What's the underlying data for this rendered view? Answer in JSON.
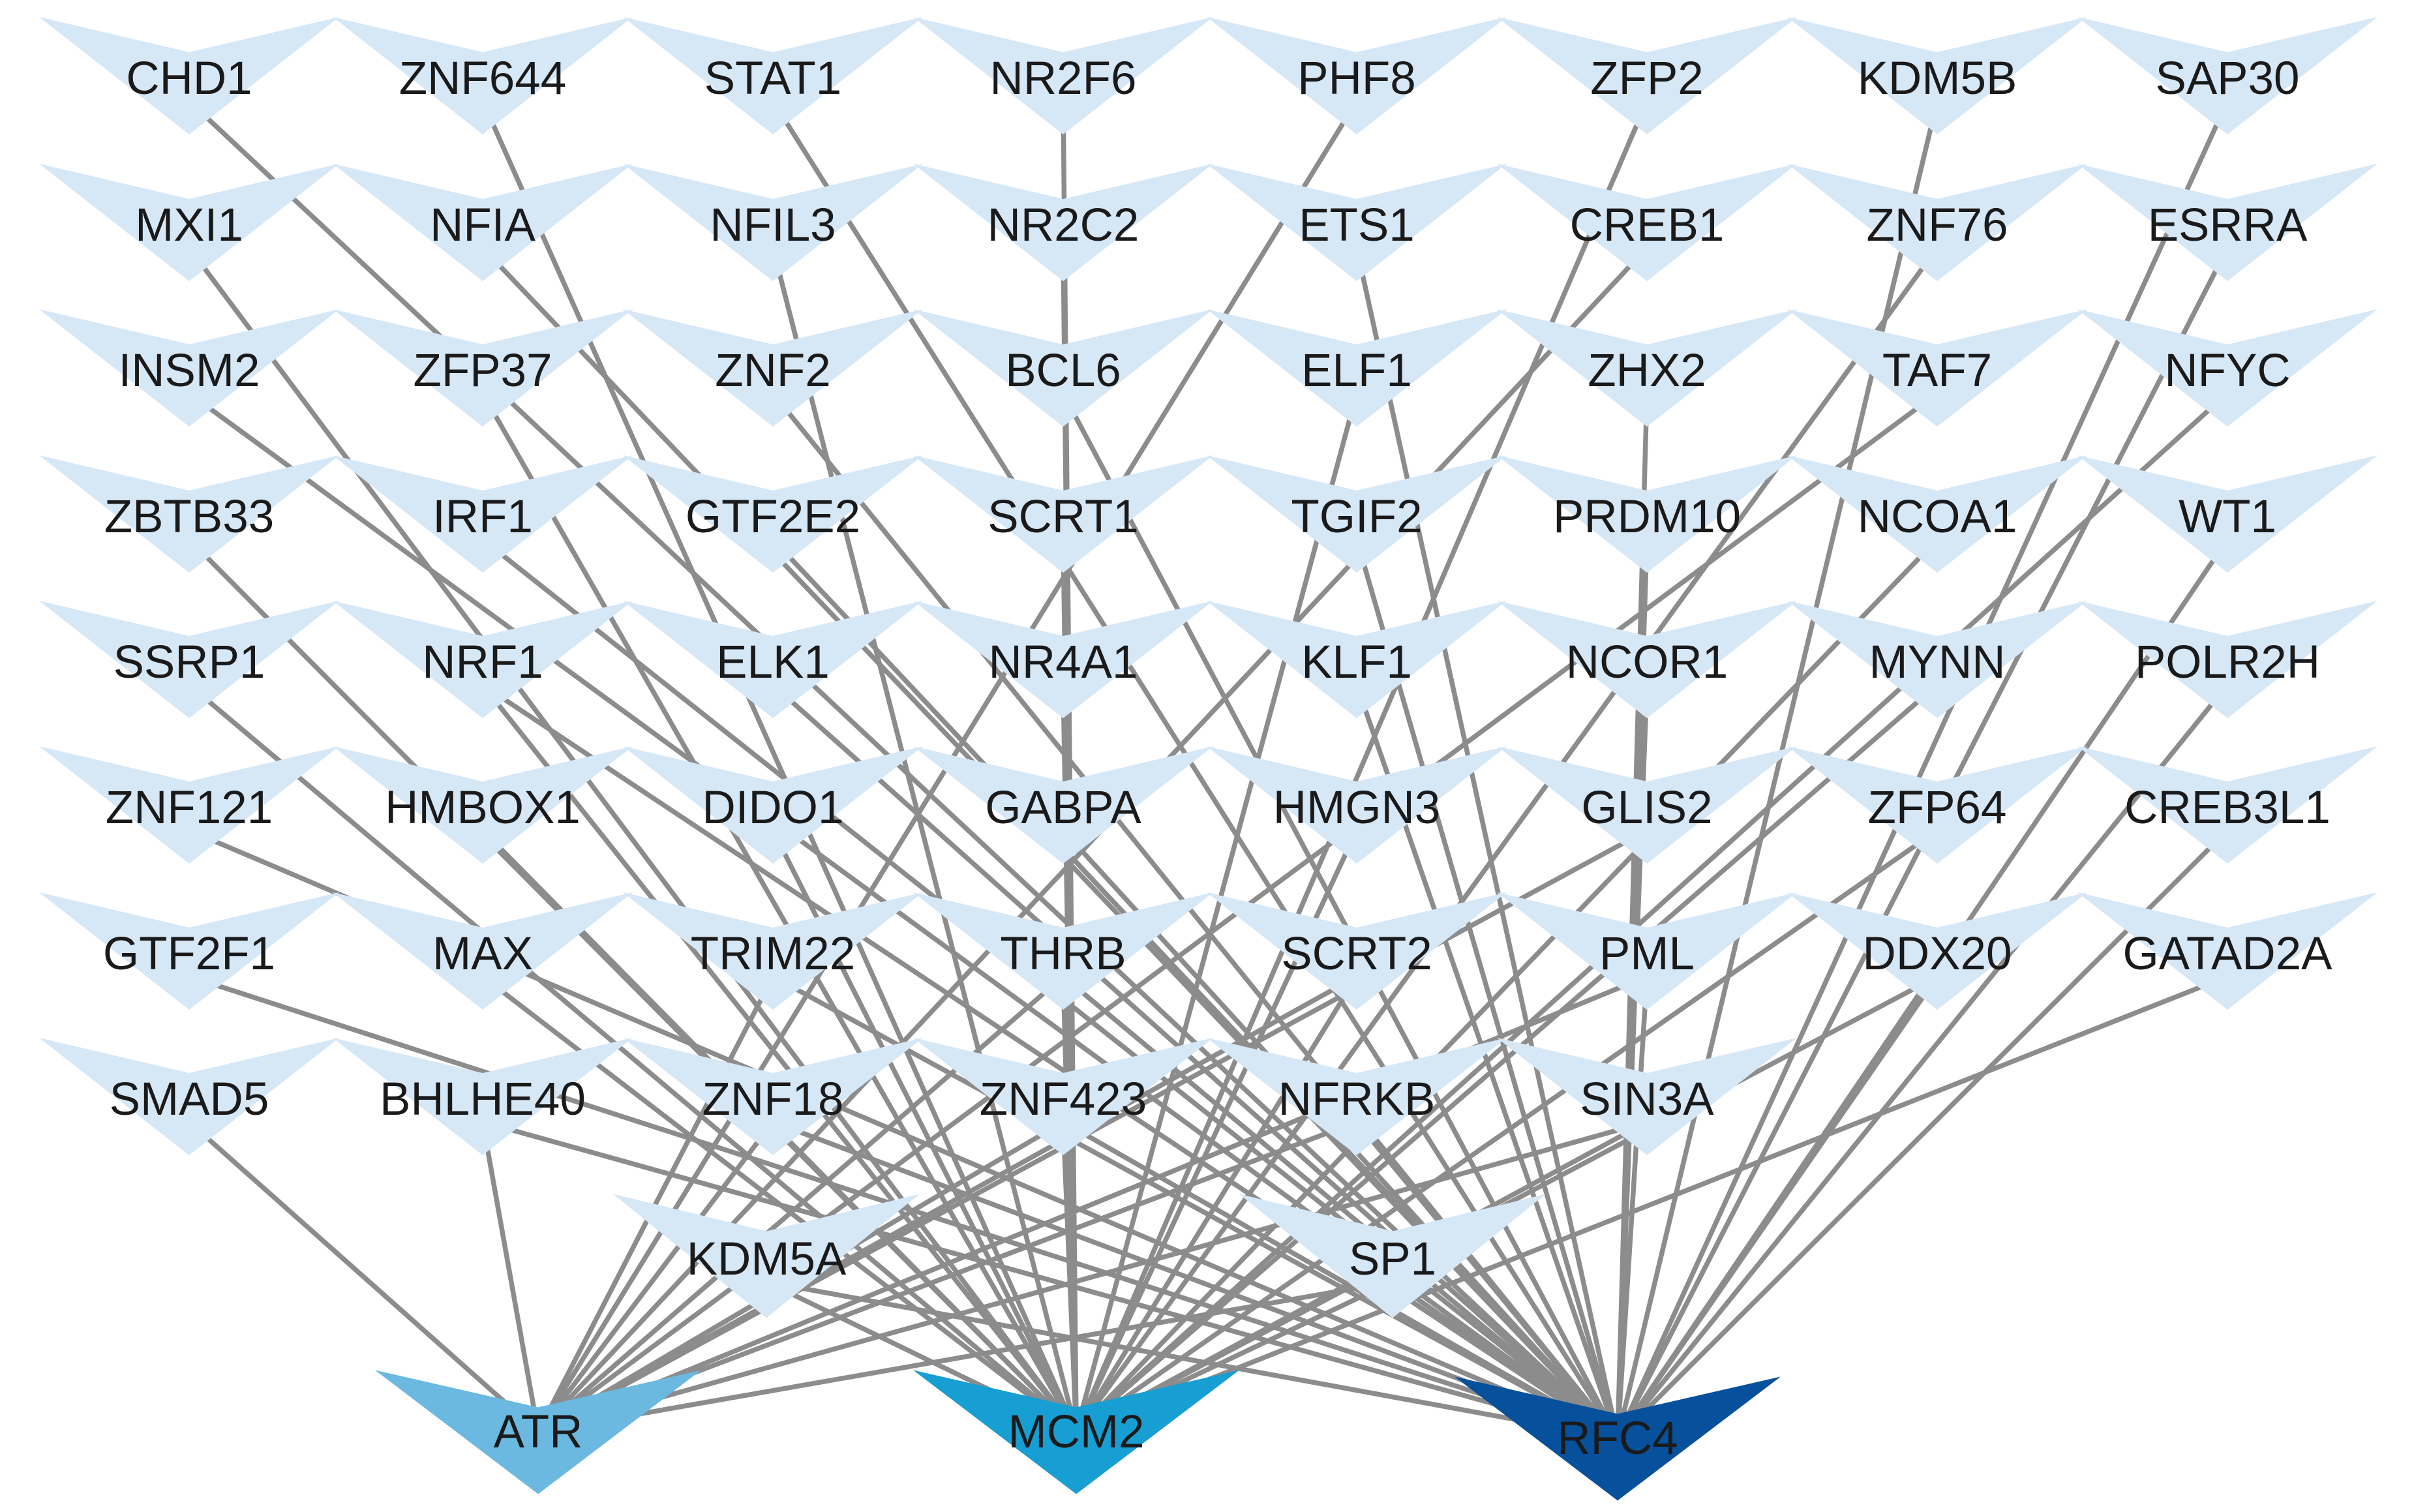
{
  "colors": {
    "edge": "#8c8c8c",
    "tf": "#d6e7f6",
    "ATR": "#6bb9e1",
    "MCM2": "#179ed2",
    "RFC4": "#06509c"
  },
  "tf_rows": [
    [
      "CHD1",
      "ZNF644",
      "STAT1",
      "NR2F6",
      "PHF8",
      "ZFP2",
      "KDM5B",
      "SAP30"
    ],
    [
      "MXI1",
      "NFIA",
      "NFIL3",
      "NR2C2",
      "ETS1",
      "CREB1",
      "ZNF76",
      "ESRRA"
    ],
    [
      "INSM2",
      "ZFP37",
      "ZNF2",
      "BCL6",
      "ELF1",
      "ZHX2",
      "TAF7",
      "NFYC"
    ],
    [
      "ZBTB33",
      "IRF1",
      "GTF2E2",
      "SCRT1",
      "TGIF2",
      "PRDM10",
      "NCOA1",
      "WT1"
    ],
    [
      "SSRP1",
      "NRF1",
      "ELK1",
      "NR4A1",
      "KLF1",
      "NCOR1",
      "MYNN",
      "POLR2H"
    ],
    [
      "ZNF121",
      "HMBOX1",
      "DIDO1",
      "GABPA",
      "HMGN3",
      "GLIS2",
      "ZFP64",
      "CREB3L1"
    ],
    [
      "GTF2F1",
      "MAX",
      "TRIM22",
      "THRB",
      "SCRT2",
      "PML",
      "DDX20",
      "GATAD2A"
    ],
    [
      "SMAD5",
      "BHLHE40",
      "ZNF18",
      "ZNF423",
      "NFRKB",
      "SIN3A"
    ],
    [
      "KDM5A",
      "SP1"
    ]
  ],
  "targets": [
    "ATR",
    "MCM2",
    "RFC4"
  ],
  "edges": [
    [
      "CHD1",
      "RFC4"
    ],
    [
      "ZNF644",
      "MCM2"
    ],
    [
      "STAT1",
      "RFC4"
    ],
    [
      "NR2F6",
      "MCM2"
    ],
    [
      "PHF8",
      "ATR"
    ],
    [
      "ZFP2",
      "MCM2"
    ],
    [
      "KDM5B",
      "RFC4"
    ],
    [
      "SAP30",
      "RFC4"
    ],
    [
      "MXI1",
      "MCM2"
    ],
    [
      "NFIA",
      "RFC4"
    ],
    [
      "NFIL3",
      "MCM2"
    ],
    [
      "NR2C2",
      "MCM2"
    ],
    [
      "ETS1",
      "RFC4"
    ],
    [
      "CREB1",
      "ATR"
    ],
    [
      "ZNF76",
      "MCM2"
    ],
    [
      "ESRRA",
      "RFC4"
    ],
    [
      "INSM2",
      "RFC4"
    ],
    [
      "ZFP37",
      "MCM2"
    ],
    [
      "ZNF2",
      "RFC4"
    ],
    [
      "BCL6",
      "RFC4"
    ],
    [
      "ELF1",
      "MCM2"
    ],
    [
      "ZHX2",
      "RFC4"
    ],
    [
      "TAF7",
      "ATR"
    ],
    [
      "NFYC",
      "MCM2"
    ],
    [
      "ZBTB33",
      "MCM2"
    ],
    [
      "IRF1",
      "RFC4"
    ],
    [
      "GTF2E2",
      "RFC4"
    ],
    [
      "SCRT1",
      "MCM2"
    ],
    [
      "TGIF2",
      "RFC4"
    ],
    [
      "PRDM10",
      "RFC4"
    ],
    [
      "NCOA1",
      "MCM2"
    ],
    [
      "WT1",
      "RFC4"
    ],
    [
      "SSRP1",
      "MCM2"
    ],
    [
      "NRF1",
      "MCM2"
    ],
    [
      "NRF1",
      "RFC4"
    ],
    [
      "ELK1",
      "RFC4"
    ],
    [
      "NR4A1",
      "MCM2"
    ],
    [
      "KLF1",
      "RFC4"
    ],
    [
      "NCOR1",
      "RFC4"
    ],
    [
      "MYNN",
      "MCM2"
    ],
    [
      "POLR2H",
      "RFC4"
    ],
    [
      "ZNF121",
      "RFC4"
    ],
    [
      "HMBOX1",
      "MCM2"
    ],
    [
      "DIDO1",
      "MCM2"
    ],
    [
      "GABPA",
      "RFC4"
    ],
    [
      "HMGN3",
      "MCM2"
    ],
    [
      "GLIS2",
      "ATR"
    ],
    [
      "ZFP64",
      "MCM2"
    ],
    [
      "CREB3L1",
      "RFC4"
    ],
    [
      "GTF2F1",
      "RFC4"
    ],
    [
      "MAX",
      "MCM2"
    ],
    [
      "TRIM22",
      "ATR"
    ],
    [
      "TRIM22",
      "RFC4"
    ],
    [
      "THRB",
      "ATR"
    ],
    [
      "THRB",
      "MCM2"
    ],
    [
      "THRB",
      "RFC4"
    ],
    [
      "SCRT2",
      "ATR"
    ],
    [
      "SCRT2",
      "MCM2"
    ],
    [
      "PML",
      "ATR"
    ],
    [
      "PML",
      "RFC4"
    ],
    [
      "DDX20",
      "MCM2"
    ],
    [
      "DDX20",
      "RFC4"
    ],
    [
      "GATAD2A",
      "MCM2"
    ],
    [
      "SMAD5",
      "ATR"
    ],
    [
      "BHLHE40",
      "ATR"
    ],
    [
      "BHLHE40",
      "RFC4"
    ],
    [
      "ZNF18",
      "ATR"
    ],
    [
      "ZNF18",
      "RFC4"
    ],
    [
      "ZNF423",
      "ATR"
    ],
    [
      "ZNF423",
      "MCM2"
    ],
    [
      "ZNF423",
      "RFC4"
    ],
    [
      "NFRKB",
      "ATR"
    ],
    [
      "NFRKB",
      "RFC4"
    ],
    [
      "SIN3A",
      "ATR"
    ],
    [
      "SIN3A",
      "MCM2"
    ],
    [
      "KDM5A",
      "MCM2"
    ],
    [
      "KDM5A",
      "RFC4"
    ],
    [
      "SP1",
      "ATR"
    ],
    [
      "SP1",
      "MCM2"
    ],
    [
      "SP1",
      "RFC4"
    ]
  ]
}
